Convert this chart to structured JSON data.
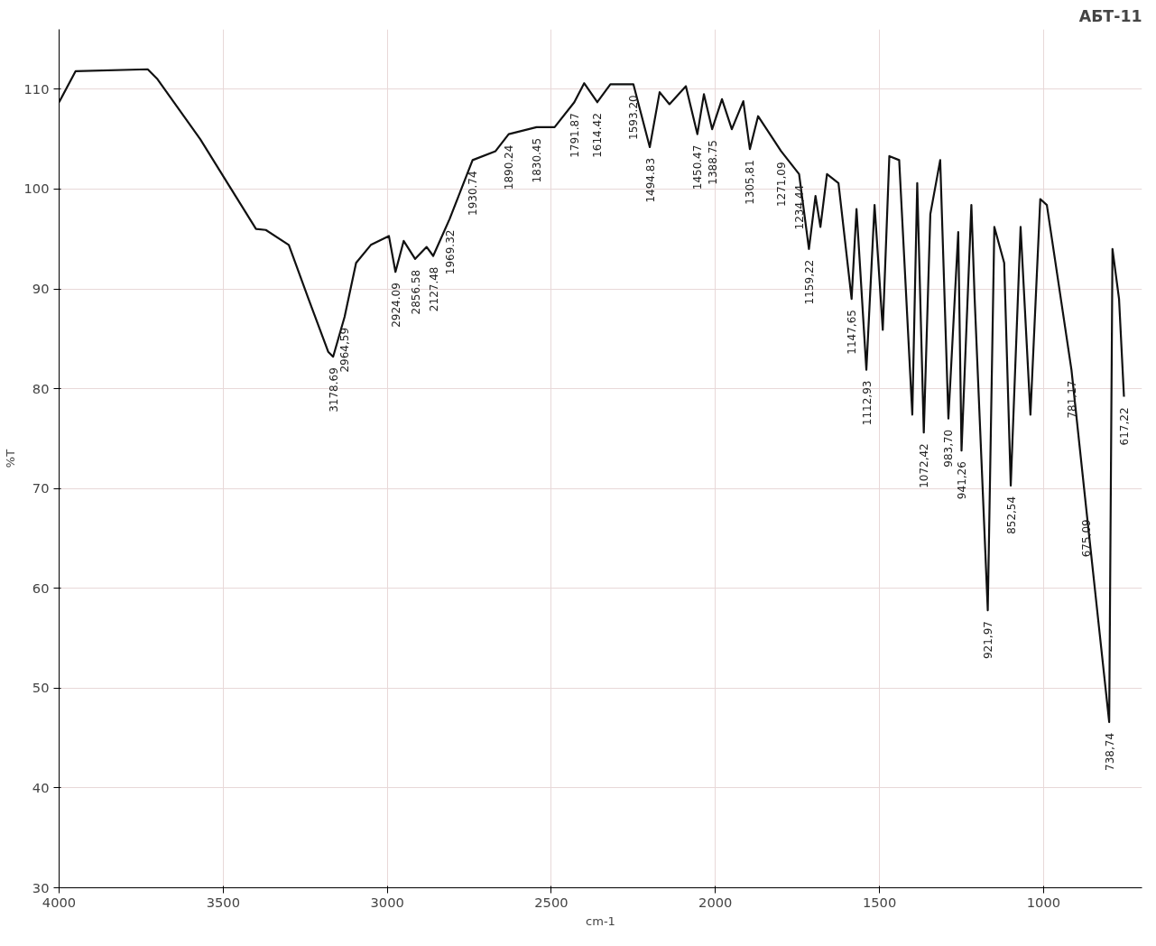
{
  "chart_data": {
    "type": "line",
    "title": "АБТ-11",
    "xlabel": "cm-1",
    "ylabel": "%T",
    "xlim": [
      4000,
      700
    ],
    "xticks": [
      4000,
      3500,
      3000,
      2500,
      2000,
      1500,
      1000
    ],
    "ylim": [
      30,
      116
    ],
    "yticks": [
      30,
      40,
      50,
      60,
      70,
      80,
      90,
      100,
      110
    ],
    "grid": true,
    "marker": "none",
    "line_style": "solid",
    "x": [
      4000,
      3950,
      3730,
      3700,
      3570,
      3400,
      3370,
      3300,
      3240,
      3180,
      3165,
      3130,
      3095,
      3050,
      2995,
      2975,
      2950,
      2915,
      2880,
      2860,
      2810,
      2740,
      2670,
      2630,
      2545,
      2490,
      2430,
      2400,
      2360,
      2320,
      2250,
      2200,
      2170,
      2140,
      2090,
      2055,
      2035,
      2010,
      1980,
      1950,
      1915,
      1895,
      1870,
      1800,
      1745,
      1715,
      1695,
      1680,
      1660,
      1625,
      1585,
      1570,
      1540,
      1515,
      1490,
      1470,
      1440,
      1400,
      1385,
      1365,
      1345,
      1315,
      1290,
      1260,
      1250,
      1220,
      1210,
      1170,
      1150,
      1120,
      1100,
      1070,
      1040,
      1010,
      990,
      915,
      870,
      800,
      790,
      770,
      755
    ],
    "series": [
      {
        "color": "#111111",
        "values": [
          108.7,
          111.8,
          112,
          111,
          105,
          96,
          95.9,
          94.4,
          89,
          83.7,
          83.2,
          87.2,
          92.6,
          94.4,
          95.3,
          91.7,
          94.8,
          93,
          94.2,
          93.3,
          97,
          102.9,
          103.8,
          105.5,
          106.2,
          106.2,
          108.7,
          110.6,
          108.7,
          110.5,
          110.5,
          104.2,
          109.7,
          108.5,
          110.3,
          105.5,
          109.5,
          106,
          109,
          106,
          108.8,
          104,
          107.3,
          103.8,
          101.5,
          94,
          99.3,
          96.2,
          101.5,
          100.6,
          89,
          98,
          81.9,
          98.4,
          85.9,
          103.3,
          102.9,
          77.4,
          100.6,
          75.6,
          97.5,
          102.9,
          77,
          95.7,
          73.8,
          98.4,
          89,
          57.8,
          96.2,
          92.6,
          70.3,
          96.2,
          77.4,
          99,
          98.4,
          81.9,
          68,
          46.6,
          94,
          89,
          79.2
        ]
      }
    ],
    "annotations": [
      {
        "text": "3178.69",
        "x": 3165,
        "y": 83.2
      },
      {
        "text": "2964,59",
        "x": 3130,
        "y": 87.2
      },
      {
        "text": "2924.09",
        "x": 2975,
        "y": 91.7
      },
      {
        "text": "2856.58",
        "x": 2915,
        "y": 93
      },
      {
        "text": "2127.48",
        "x": 2860,
        "y": 93.3
      },
      {
        "text": "1969.32",
        "x": 2810,
        "y": 97
      },
      {
        "text": "1930.74",
        "x": 2740,
        "y": 102.9
      },
      {
        "text": "1890.24",
        "x": 2630,
        "y": 105.5
      },
      {
        "text": "1830.45",
        "x": 2545,
        "y": 106.2
      },
      {
        "text": "1791.87",
        "x": 2430,
        "y": 108.7
      },
      {
        "text": "1614.42",
        "x": 2360,
        "y": 108.7
      },
      {
        "text": "1593.20",
        "x": 2250,
        "y": 110.5
      },
      {
        "text": "1494.83",
        "x": 2200,
        "y": 104.2
      },
      {
        "text": "1450.47",
        "x": 2055,
        "y": 105.5
      },
      {
        "text": "1388.75",
        "x": 2010,
        "y": 106
      },
      {
        "text": "1305,81",
        "x": 1895,
        "y": 104
      },
      {
        "text": "1271,09",
        "x": 1800,
        "y": 103.8
      },
      {
        "text": "1234,44",
        "x": 1745,
        "y": 101.5
      },
      {
        "text": "1159,22",
        "x": 1715,
        "y": 94
      },
      {
        "text": "1147,65",
        "x": 1585,
        "y": 89
      },
      {
        "text": "1112,93",
        "x": 1540,
        "y": 81.9
      },
      {
        "text": "1072,42",
        "x": 1365,
        "y": 75.6
      },
      {
        "text": "983,70",
        "x": 1290,
        "y": 77
      },
      {
        "text": "941,26",
        "x": 1250,
        "y": 73.8
      },
      {
        "text": "921,97",
        "x": 1170,
        "y": 57.8
      },
      {
        "text": "852,54",
        "x": 1100,
        "y": 70.3
      },
      {
        "text": "781,17",
        "x": 915,
        "y": 81.9
      },
      {
        "text": "738,74",
        "x": 800,
        "y": 46.6
      },
      {
        "text": "675,09",
        "x": 870,
        "y": 68
      },
      {
        "text": "617,22",
        "x": 755,
        "y": 79.2
      }
    ]
  }
}
